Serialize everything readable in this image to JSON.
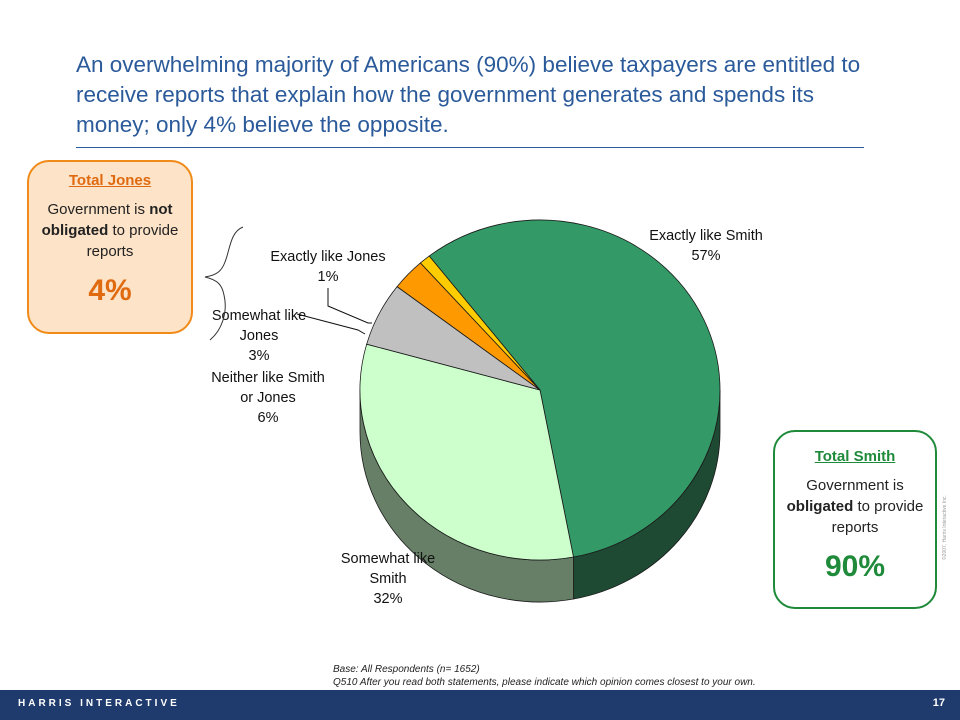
{
  "headline": "An overwhelming majority of Americans (90%) believe taxpayers are entitled to receive reports that explain how the government generates and spends its money; only 4% believe the opposite.",
  "box_jones": {
    "title": "Total Jones",
    "text_before": "Government is",
    "text_bold": "not obligated",
    "text_after": "to provide reports",
    "percent": "4%"
  },
  "box_smith": {
    "title": "Total Smith",
    "text_before": "Government is",
    "text_bold": "obligated",
    "text_after": "to provide reports",
    "percent": "90%"
  },
  "chart_data": {
    "type": "pie",
    "title": "",
    "categories": [
      "Exactly like Smith",
      "Somewhat like Smith",
      "Neither like Smith or Jones",
      "Somewhat like Jones",
      "Exactly like Jones"
    ],
    "values": [
      57,
      32,
      6,
      3,
      1
    ],
    "labels": [
      "Exactly like Smith\n57%",
      "Somewhat like\nSmith\n32%",
      "Neither like Smith\nor Jones\n6%",
      "Somewhat like\nJones\n3%",
      "Exactly like Jones\n1%"
    ],
    "colors": [
      "#339966",
      "#ccffcc",
      "#c0c0c0",
      "#ff9900",
      "#ffcc00"
    ],
    "side_colors": [
      "#1e4a33",
      "#667f66",
      "#707070",
      "#8a5200",
      "#8a6e00"
    ],
    "style": "3d"
  },
  "footnote": {
    "base": "Base: All Respondents (n= 1652)",
    "question": "Q510  After you read both statements, please indicate which opinion comes closest to your own."
  },
  "footer": {
    "company": "HARRIS INTERACTIVE",
    "page": "17"
  },
  "copyright": "©2007, Harris Interactive Inc."
}
